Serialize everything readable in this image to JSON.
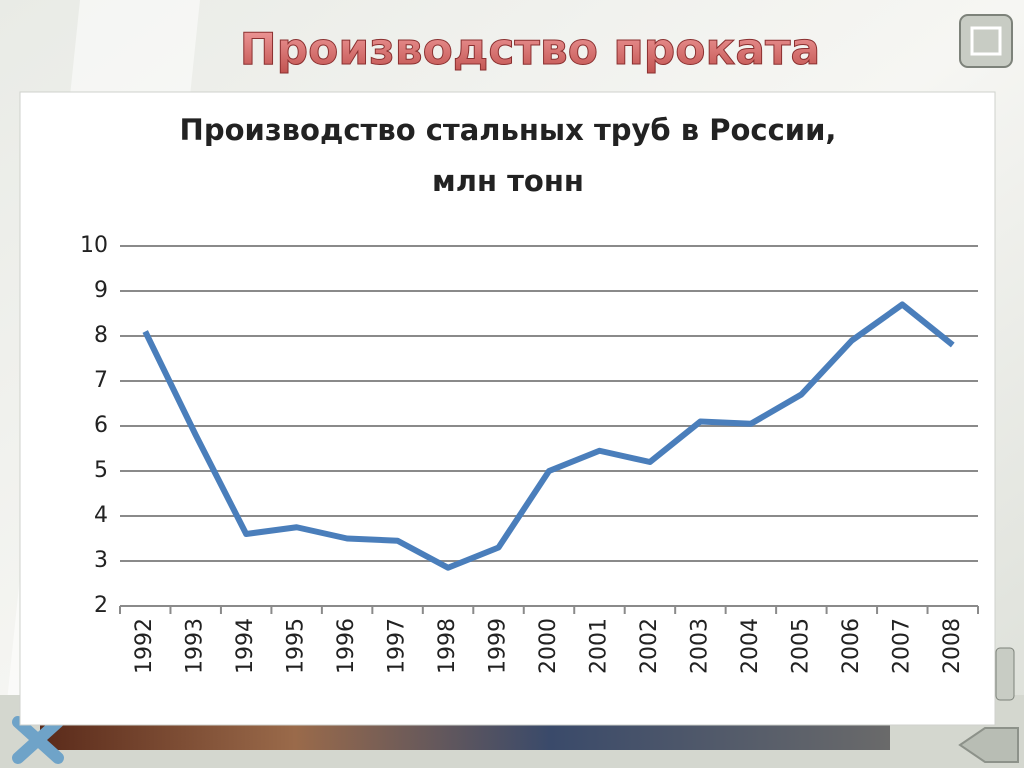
{
  "slide": {
    "title": "Производство проката"
  },
  "chart_data": {
    "type": "line",
    "title": "Производство стальных труб в России,",
    "subtitle": "млн тонн",
    "categories": [
      "1992",
      "1993",
      "1994",
      "1995",
      "1996",
      "1997",
      "1998",
      "1999",
      "2000",
      "2001",
      "2002",
      "2003",
      "2004",
      "2005",
      "2006",
      "2007",
      "2008"
    ],
    "values": [
      8.1,
      5.8,
      3.6,
      3.75,
      3.5,
      3.45,
      2.85,
      3.3,
      5.0,
      5.45,
      5.2,
      6.1,
      6.05,
      6.7,
      7.9,
      8.7,
      7.8
    ],
    "color": "#4a7ebb",
    "ylim": [
      2,
      10
    ],
    "yticks": [
      2,
      3,
      4,
      5,
      6,
      7,
      8,
      9,
      10
    ],
    "grid": true
  }
}
